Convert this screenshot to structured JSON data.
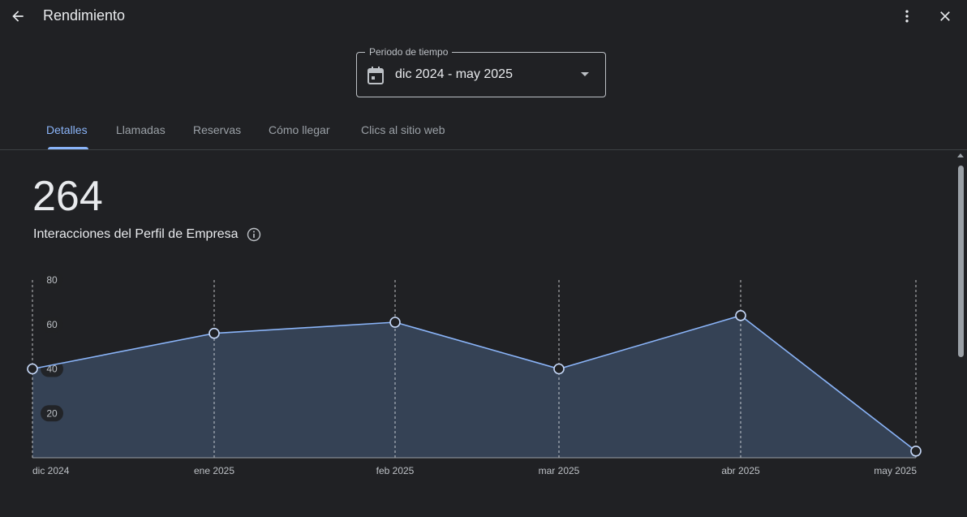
{
  "header": {
    "title": "Rendimiento",
    "back_icon": "arrow-back-icon",
    "more_icon": "more-vert-icon",
    "close_icon": "close-icon"
  },
  "period": {
    "label": "Periodo de tiempo",
    "value": "dic 2024 - may 2025",
    "icon": "calendar-icon"
  },
  "tabs": [
    {
      "label": "Detalles",
      "active": true
    },
    {
      "label": "Llamadas",
      "active": false
    },
    {
      "label": "Reservas",
      "active": false
    },
    {
      "label": "Cómo llegar",
      "active": false
    },
    {
      "label": "Clics al sitio web",
      "active": false
    }
  ],
  "summary": {
    "total": "264",
    "label": "Interacciones del Perfil de Empresa",
    "info_icon": "info-icon"
  },
  "colors": {
    "background": "#202124",
    "accent": "#8ab4f8",
    "area_fill": "#374558"
  },
  "chart_data": {
    "type": "area",
    "categories": [
      "dic 2024",
      "ene 2025",
      "feb 2025",
      "mar 2025",
      "abr 2025",
      "may 2025"
    ],
    "series": [
      {
        "values": [
          40,
          56,
          61,
          40,
          64,
          3
        ]
      }
    ],
    "yticks": [
      "20",
      "40",
      "60",
      "80"
    ],
    "ylim": [
      0,
      80
    ],
    "grid": "vertical-dashed"
  }
}
